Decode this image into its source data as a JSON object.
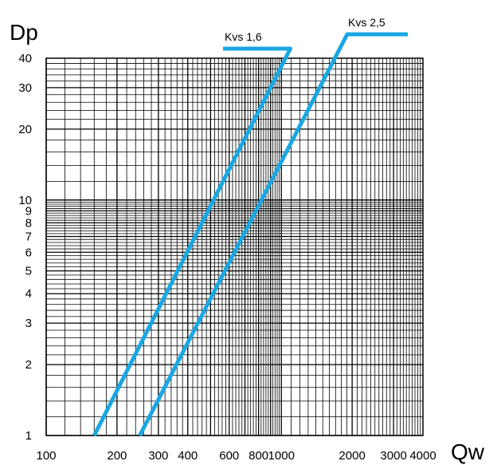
{
  "chart_data": {
    "type": "line",
    "title": "",
    "xlabel": "Qw",
    "ylabel": "Dp",
    "x_scale": "log",
    "y_scale": "log",
    "xlim": [
      100,
      4000
    ],
    "ylim": [
      1,
      40
    ],
    "grid": true,
    "x_ticks": [
      100,
      200,
      300,
      400,
      600,
      800,
      1000,
      2000,
      3000,
      4000
    ],
    "x_tick_labels": [
      "100",
      "200",
      "300",
      "400",
      "600",
      "800",
      "1000",
      "2000",
      "3000",
      "4000"
    ],
    "y_ticks": [
      1,
      2,
      3,
      4,
      5,
      6,
      7,
      8,
      9,
      10,
      20,
      30,
      40
    ],
    "y_tick_labels": [
      "1",
      "2",
      "3",
      "4",
      "5",
      "6",
      "7",
      "8",
      "9",
      "10",
      "20",
      "30",
      "40"
    ],
    "series_color": "#1aa7e3",
    "series": [
      {
        "name": "Kvs 1,6",
        "x": [
          160,
          1010
        ],
        "y": [
          1,
          40
        ]
      },
      {
        "name": "Kvs 2,5",
        "x": [
          250,
          1580
        ],
        "y": [
          1,
          40
        ]
      }
    ]
  }
}
